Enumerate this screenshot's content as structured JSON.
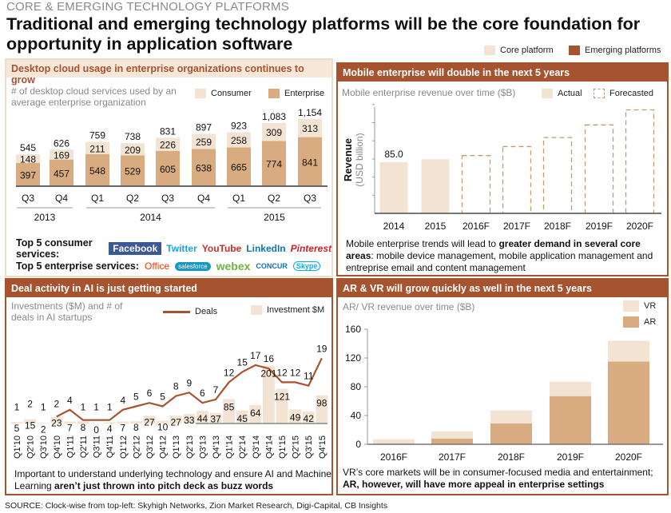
{
  "header": {
    "kicker": "CORE & EMERGING TECHNOLOGY PLATFORMS",
    "title": "Traditional and emerging technology platforms will be the core foundation for opportunity in application software",
    "legend": [
      {
        "label": "Core platform",
        "color": "#f3e3d3"
      },
      {
        "label": "Emerging platforms",
        "color": "#a65330"
      }
    ]
  },
  "colors": {
    "brand": "#a65330",
    "light": "#f3e3d3",
    "tan": "#d8ac80"
  },
  "panels": {
    "cloud": {
      "title": "Desktop cloud usage in enterprise organizations continues to grow",
      "subtitle": "# of desktop cloud services used by an average enterprise organization",
      "consumer_label": "Top 5 consumer services:",
      "enterprise_label": "Top 5 enterprise services:",
      "consumer_services": [
        "Facebook",
        "Twitter",
        "YouTube",
        "LinkedIn",
        "Pinterest"
      ],
      "enterprise_services": [
        "Office",
        "salesforce",
        "webex",
        "CONCUR",
        "Skype"
      ]
    },
    "mobile": {
      "title": "Mobile enterprise will double in the next 5 years",
      "subtitle": "Mobile enterprise revenue over time ($B)",
      "note_pre": "Mobile enterprise trends will lead to ",
      "note_bold": "greater demand in several core areas",
      "note_post": ": mobile device management, mobile application management and entreprise email and content management"
    },
    "ai": {
      "title": "Deal activity in AI is just getting started",
      "subtitle": "Investments ($M) and # of deals in AI startups",
      "note_pre": "Important to understand underlying technology and ensure AI and Machine Learning ",
      "note_bold": "aren’t just thrown into pitch deck as buzz words"
    },
    "arvr": {
      "title": "AR & VR will grow quickly as well in the next 5 years",
      "subtitle": "AR/ VR revenue over time ($B)",
      "note_pre": "VR’s core markets will be in consumer-focused media and entertainment; ",
      "note_bold": "AR, however, will have more appeal in enterprise settings"
    }
  },
  "source": "SOURCE: Clock-wise from top-left: Skyhigh Networks, Zion Market Research, Digi-Capital, CB Insights",
  "chart_data": [
    {
      "type": "bar",
      "stacked": true,
      "categories": [
        "Q3",
        "Q4",
        "Q1",
        "Q2",
        "Q3",
        "Q4",
        "Q1",
        "Q2",
        "Q3"
      ],
      "groups": [
        {
          "label": "2013",
          "span": 2
        },
        {
          "label": "2014",
          "span": 4
        },
        {
          "label": "2015",
          "span": 3
        }
      ],
      "series": [
        {
          "name": "Enterprise",
          "color": "#d8ac80",
          "values": [
            397,
            457,
            548,
            529,
            605,
            638,
            665,
            774,
            841
          ]
        },
        {
          "name": "Consumer",
          "color": "#f3e3d3",
          "values": [
            148,
            169,
            211,
            209,
            226,
            259,
            258,
            309,
            313
          ]
        }
      ],
      "totals": [
        "545",
        "626",
        "759",
        "738",
        "831",
        "897",
        "923",
        "1,083",
        "1,154"
      ],
      "legend": "top-right"
    },
    {
      "type": "bar",
      "categories": [
        "2014",
        "2015",
        "2016F",
        "2017F",
        "2018F",
        "2019F",
        "2020F"
      ],
      "values": [
        85,
        90,
        96,
        111,
        126,
        147,
        172
      ],
      "kind": [
        "Actual",
        "Actual",
        "Forecasted",
        "Forecasted",
        "Forecasted",
        "Forecasted",
        "Forecasted"
      ],
      "data_labels": [
        "85.0",
        "",
        "",
        "",
        "",
        "",
        ""
      ],
      "ylabel": "Revenue",
      "ylabel_sub": "(USD billion)",
      "legend_items": [
        "Actual",
        "Forecasted"
      ],
      "legend": "top-right"
    },
    {
      "type": "bar+line",
      "categories": [
        "Q1'10",
        "Q2'10",
        "Q3'10",
        "Q4'10",
        "Q1'11",
        "Q2'11",
        "Q3'11",
        "Q4'11",
        "Q1'12",
        "Q2'12",
        "Q3'12",
        "Q4'12",
        "Q1'13",
        "Q2'13",
        "Q3'13",
        "Q4'13",
        "Q1'14",
        "Q2'14",
        "Q3'14",
        "Q4'14",
        "Q1'15",
        "Q2'15",
        "Q3'15",
        "Q4'15"
      ],
      "series": [
        {
          "name": "Deals",
          "type": "line",
          "color": "#a65330",
          "values": [
            1,
            2,
            1,
            2,
            4,
            1,
            1,
            1,
            4,
            5,
            6,
            5,
            8,
            9,
            6,
            7,
            12,
            15,
            17,
            16,
            12,
            12,
            11,
            19
          ]
        },
        {
          "name": "Investment $M",
          "type": "bar",
          "color": "#f3e3d3",
          "values": [
            5,
            15,
            2,
            23,
            7,
            8,
            0,
            4,
            7,
            8,
            27,
            10,
            27,
            33,
            44,
            37,
            85,
            45,
            64,
            201,
            121,
            49,
            42,
            98
          ]
        }
      ],
      "legend": "top-right"
    },
    {
      "type": "bar",
      "stacked": true,
      "categories": [
        "2016F",
        "2017F",
        "2018F",
        "2019F",
        "2020F"
      ],
      "series": [
        {
          "name": "AR",
          "color": "#d8ac80",
          "values": [
            1,
            8,
            29,
            67,
            115
          ]
        },
        {
          "name": "VR",
          "color": "#f3e3d3",
          "values": [
            6,
            10,
            18,
            20,
            29
          ]
        }
      ],
      "yticks": [
        0,
        40,
        80,
        120,
        160
      ],
      "ylim": [
        0,
        160
      ],
      "legend": "top-right"
    }
  ]
}
